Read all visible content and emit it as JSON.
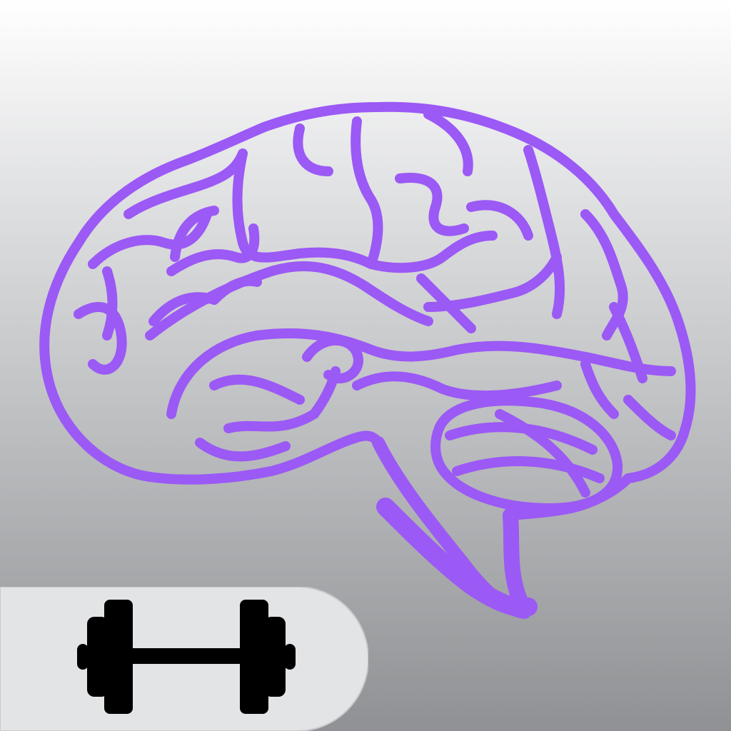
{
  "app_icon": {
    "subject": "brain-icon",
    "badge_symbol": "dumbbell-icon"
  },
  "colors": {
    "background_top": "#ffffff",
    "background_bottom": "#8f9194",
    "brain_stroke": "#9b59f5",
    "badge_fill": "#e3e4e6",
    "badge_edge": "#c9cacd",
    "dumbbell_fill": "#000000"
  }
}
